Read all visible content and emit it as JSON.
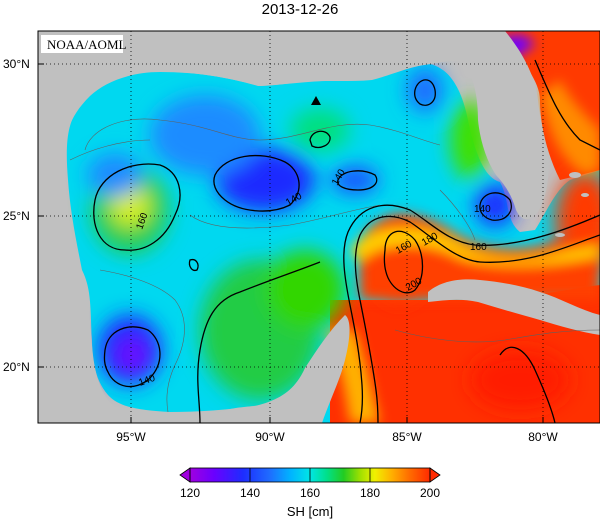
{
  "title": "2013-12-26",
  "credit": "NOAA/AOML",
  "axes": {
    "lat_labels": [
      "30°N",
      "25°N",
      "20°N"
    ],
    "lon_labels": [
      "95°W",
      "90°W",
      "85°W",
      "80°W"
    ]
  },
  "contour_labels": [
    "160",
    "140",
    "140",
    "140",
    "160",
    "180",
    "160",
    "200",
    "140"
  ],
  "colorbar": {
    "label": "SH [cm]",
    "ticks": [
      "120",
      "140",
      "160",
      "180",
      "200"
    ],
    "min": 120,
    "max": 200,
    "colors": [
      "#a000e0",
      "#6a00ff",
      "#1e2cff",
      "#1f6bff",
      "#00b4ff",
      "#00e6e6",
      "#00e08a",
      "#22cc22",
      "#a0e000",
      "#f0f000",
      "#ffb000",
      "#ff7000",
      "#ff2a00"
    ]
  },
  "map": {
    "land_color": "#c0c0c0",
    "marker": "triangle"
  }
}
